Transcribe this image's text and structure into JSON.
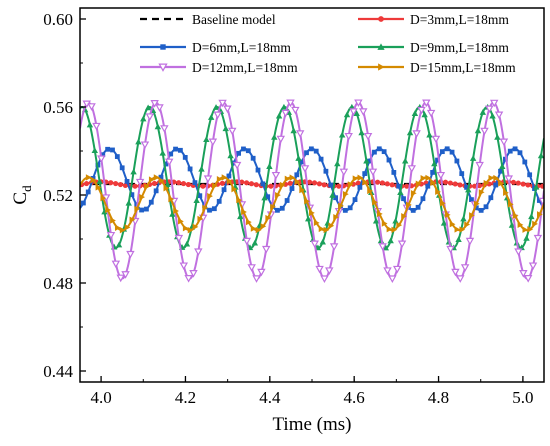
{
  "chart_data": {
    "type": "line",
    "xlabel": "Time (ms)",
    "ylabel": "C",
    "ylabel_sub": "d",
    "xlim": [
      3.95,
      5.05
    ],
    "ylim": [
      0.435,
      0.605
    ],
    "x_ticks": [
      "4.0",
      "4.2",
      "4.4",
      "4.6",
      "4.8",
      "5.0"
    ],
    "y_ticks": [
      "0.44",
      "0.48",
      "0.52",
      "0.56",
      "0.60"
    ],
    "grid": false,
    "legend_position": "top",
    "series": [
      {
        "name": "Baseline model",
        "color": "#000000",
        "dash": "dashed",
        "marker": "none",
        "mean": 0.525,
        "amplitude": 0.0,
        "period": 0.16,
        "peak_x": 4.0
      },
      {
        "name": "D=3mm,L=18mm",
        "color": "#ee3a3a",
        "dash": "solid",
        "marker": "circle",
        "mean": 0.525,
        "amplitude": 0.001,
        "period": 0.16,
        "peak_x": 4.0
      },
      {
        "name": "D=6mm,L=18mm",
        "color": "#1f5fc8",
        "dash": "solid",
        "marker": "square",
        "mean": 0.527,
        "amplitude": 0.014,
        "period": 0.16,
        "peak_x": 4.18
      },
      {
        "name": "D=9mm,L=18mm",
        "color": "#1aa05a",
        "dash": "solid",
        "marker": "triangle-up",
        "mean": 0.528,
        "amplitude": 0.032,
        "period": 0.16,
        "peak_x": 4.115
      },
      {
        "name": "D=12mm,L=18mm",
        "color": "#c070e0",
        "dash": "solid",
        "marker": "triangle-down-open",
        "mean": 0.522,
        "amplitude": 0.04,
        "period": 0.16,
        "peak_x": 4.13
      },
      {
        "name": "D=15mm,L=18mm",
        "color": "#d48a00",
        "dash": "solid",
        "marker": "triangle-right",
        "mean": 0.516,
        "amplitude": 0.012,
        "period": 0.16,
        "peak_x": 4.13
      }
    ]
  }
}
